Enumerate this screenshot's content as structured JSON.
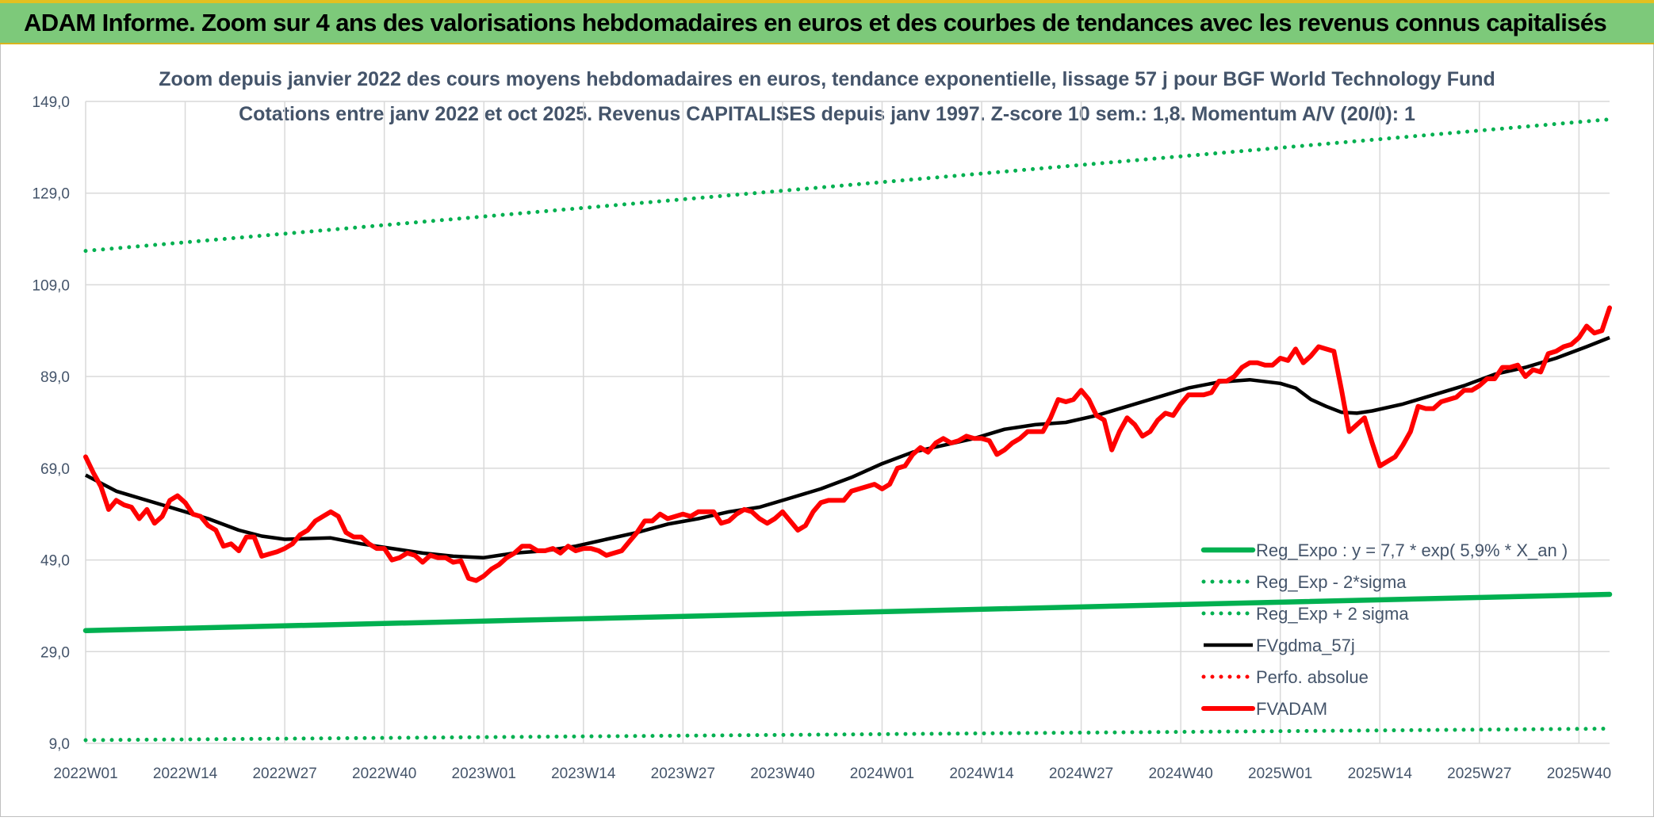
{
  "header": {
    "title": "ADAM Informe. Zoom sur 4 ans des valorisations hebdomadaires en euros et des courbes de tendances avec les revenus connus capitalisés",
    "background_color": "#7dc97a"
  },
  "chart_data": {
    "type": "line",
    "title": "Zoom depuis janvier 2022 des cours moyens hebdomadaires en euros, tendance exponentielle, lissage 57 j pour BGF World Technology Fund",
    "subtitle": "Cotations entre janv 2022 et oct 2025. Revenus CAPITALISES depuis janv 1997. Z-score 10 sem.: 1,8. Momentum A/V (20/0): 1",
    "ylim": [
      9,
      149
    ],
    "y_ticks": [
      "149,0",
      "129,0",
      "109,0",
      "89,0",
      "69,0",
      "49,0",
      "29,0",
      "9,0"
    ],
    "x_ticks": [
      "2022W01",
      "2022W14",
      "2022W27",
      "2022W40",
      "2023W01",
      "2023W14",
      "2023W27",
      "2023W40",
      "2024W01",
      "2024W14",
      "2024W27",
      "2024W40",
      "2025W01",
      "2025W14",
      "2025W27",
      "2025W40"
    ],
    "x_range_weeks": [
      0,
      199
    ],
    "grid": true,
    "legend_position": "bottom-right",
    "legend": [
      {
        "label": "Reg_Expo : y = 7,7 * exp( 5,9% *  X_an )",
        "color": "#00b050",
        "style": "solid"
      },
      {
        "label": "Reg_Exp - 2*sigma",
        "color": "#00b050",
        "style": "dotted"
      },
      {
        "label": "Reg_Exp + 2 sigma",
        "color": "#00b050",
        "style": "dotted"
      },
      {
        "label": "FVgdma_57j",
        "color": "#000000",
        "style": "solid"
      },
      {
        "label": "Perfo. absolue",
        "color": "#ff0000",
        "style": "dotted"
      },
      {
        "label": "FVADAM",
        "color": "#ff0000",
        "style": "solid-thick"
      }
    ],
    "series": [
      {
        "name": "Reg_Expo : y = 7,7 * exp( 5,9% *  X_an )",
        "color": "#00b050",
        "style": "solid",
        "points": [
          [
            0,
            33.6
          ],
          [
            199,
            41.5
          ]
        ]
      },
      {
        "name": "Reg_Exp - 2*sigma",
        "color": "#00b050",
        "style": "dotted",
        "points": [
          [
            0,
            9.7
          ],
          [
            199,
            12.2
          ]
        ]
      },
      {
        "name": "Reg_Exp + 2 sigma",
        "color": "#00b050",
        "style": "dotted",
        "points": [
          [
            0,
            116.4
          ],
          [
            199,
            145.1
          ]
        ]
      },
      {
        "name": "FVgdma_57j",
        "color": "#000000",
        "style": "solid",
        "points": [
          [
            0,
            67.5
          ],
          [
            4,
            64.0
          ],
          [
            10,
            61.0
          ],
          [
            16,
            58.0
          ],
          [
            20,
            55.5
          ],
          [
            23,
            54.2
          ],
          [
            26,
            53.5
          ],
          [
            32,
            53.8
          ],
          [
            36,
            52.5
          ],
          [
            40,
            51.5
          ],
          [
            44,
            50.5
          ],
          [
            48,
            49.8
          ],
          [
            52,
            49.5
          ],
          [
            56,
            50.5
          ],
          [
            60,
            51.0
          ],
          [
            64,
            52.0
          ],
          [
            68,
            53.5
          ],
          [
            72,
            55.0
          ],
          [
            76,
            56.8
          ],
          [
            80,
            58.0
          ],
          [
            84,
            59.5
          ],
          [
            88,
            60.5
          ],
          [
            92,
            62.5
          ],
          [
            96,
            64.5
          ],
          [
            100,
            67.0
          ],
          [
            104,
            70.0
          ],
          [
            108,
            72.5
          ],
          [
            112,
            74.0
          ],
          [
            116,
            75.5
          ],
          [
            120,
            77.5
          ],
          [
            124,
            78.5
          ],
          [
            128,
            79.0
          ],
          [
            132,
            80.5
          ],
          [
            136,
            82.5
          ],
          [
            140,
            84.5
          ],
          [
            144,
            86.5
          ],
          [
            148,
            87.8
          ],
          [
            152,
            88.3
          ],
          [
            156,
            87.5
          ],
          [
            158,
            86.5
          ],
          [
            160,
            84.0
          ],
          [
            162,
            82.5
          ],
          [
            164,
            81.2
          ],
          [
            166,
            81.0
          ],
          [
            168,
            81.5
          ],
          [
            172,
            83.0
          ],
          [
            176,
            85.0
          ],
          [
            180,
            87.0
          ],
          [
            184,
            89.5
          ],
          [
            188,
            91.0
          ],
          [
            192,
            93.0
          ],
          [
            196,
            95.5
          ],
          [
            199,
            97.5
          ]
        ]
      },
      {
        "name": "FVADAM",
        "color": "#ff0000",
        "style": "solid-thick",
        "points": [
          [
            0,
            71.5
          ],
          [
            1,
            68.0
          ],
          [
            2,
            65.0
          ],
          [
            3,
            60.0
          ],
          [
            4,
            62.0
          ],
          [
            5,
            61.0
          ],
          [
            6,
            60.5
          ],
          [
            7,
            58.0
          ],
          [
            8,
            60.0
          ],
          [
            9,
            57.0
          ],
          [
            10,
            58.5
          ],
          [
            11,
            62.0
          ],
          [
            12,
            63.0
          ],
          [
            13,
            61.5
          ],
          [
            14,
            59.0
          ],
          [
            15,
            58.5
          ],
          [
            16,
            56.5
          ],
          [
            17,
            55.5
          ],
          [
            18,
            52.0
          ],
          [
            19,
            52.5
          ],
          [
            20,
            51.0
          ],
          [
            21,
            54.0
          ],
          [
            22,
            54.0
          ],
          [
            23,
            49.8
          ],
          [
            24,
            50.3
          ],
          [
            25,
            50.8
          ],
          [
            26,
            51.5
          ],
          [
            27,
            52.5
          ],
          [
            28,
            54.5
          ],
          [
            29,
            55.5
          ],
          [
            30,
            57.5
          ],
          [
            31,
            58.5
          ],
          [
            32,
            59.5
          ],
          [
            33,
            58.5
          ],
          [
            34,
            55.0
          ],
          [
            35,
            54.0
          ],
          [
            36,
            54.0
          ],
          [
            37,
            52.5
          ],
          [
            38,
            51.5
          ],
          [
            39,
            51.5
          ],
          [
            40,
            49.0
          ],
          [
            41,
            49.5
          ],
          [
            42,
            50.5
          ],
          [
            43,
            50.0
          ],
          [
            44,
            48.5
          ],
          [
            45,
            50.0
          ],
          [
            46,
            49.5
          ],
          [
            47,
            49.5
          ],
          [
            48,
            48.5
          ],
          [
            49,
            48.8
          ],
          [
            50,
            45.0
          ],
          [
            51,
            44.5
          ],
          [
            52,
            45.5
          ],
          [
            53,
            47.0
          ],
          [
            54,
            48.0
          ],
          [
            55,
            49.5
          ],
          [
            56,
            50.5
          ],
          [
            57,
            52.0
          ],
          [
            58,
            52.0
          ],
          [
            59,
            51.0
          ],
          [
            60,
            51.0
          ],
          [
            61,
            51.5
          ],
          [
            62,
            50.5
          ],
          [
            63,
            52.0
          ],
          [
            64,
            51.0
          ],
          [
            65,
            51.5
          ],
          [
            66,
            51.5
          ],
          [
            67,
            51.0
          ],
          [
            68,
            50.0
          ],
          [
            69,
            50.5
          ],
          [
            70,
            51.0
          ],
          [
            71,
            53.0
          ],
          [
            72,
            55.0
          ],
          [
            73,
            57.5
          ],
          [
            74,
            57.5
          ],
          [
            75,
            59.0
          ],
          [
            76,
            58.0
          ],
          [
            77,
            58.5
          ],
          [
            78,
            59.0
          ],
          [
            79,
            58.5
          ],
          [
            80,
            59.5
          ],
          [
            81,
            59.5
          ],
          [
            82,
            59.5
          ],
          [
            83,
            57.0
          ],
          [
            84,
            57.5
          ],
          [
            85,
            59.0
          ],
          [
            86,
            60.0
          ],
          [
            87,
            59.5
          ],
          [
            88,
            58.0
          ],
          [
            89,
            57.0
          ],
          [
            90,
            58.0
          ],
          [
            91,
            59.5
          ],
          [
            92,
            57.5
          ],
          [
            93,
            55.5
          ],
          [
            94,
            56.5
          ],
          [
            95,
            59.5
          ],
          [
            96,
            61.5
          ],
          [
            97,
            62.0
          ],
          [
            98,
            62.0
          ],
          [
            99,
            62.0
          ],
          [
            100,
            64.0
          ],
          [
            101,
            64.5
          ],
          [
            102,
            65.0
          ],
          [
            103,
            65.5
          ],
          [
            104,
            64.5
          ],
          [
            105,
            65.5
          ],
          [
            106,
            69.0
          ],
          [
            107,
            69.5
          ],
          [
            108,
            72.0
          ],
          [
            109,
            73.5
          ],
          [
            110,
            72.5
          ],
          [
            111,
            74.5
          ],
          [
            112,
            75.5
          ],
          [
            113,
            74.5
          ],
          [
            114,
            75.0
          ],
          [
            115,
            76.0
          ],
          [
            116,
            75.5
          ],
          [
            117,
            75.5
          ],
          [
            118,
            75.0
          ],
          [
            119,
            72.0
          ],
          [
            120,
            73.0
          ],
          [
            121,
            74.5
          ],
          [
            122,
            75.5
          ],
          [
            123,
            77.0
          ],
          [
            124,
            77.0
          ],
          [
            125,
            77.0
          ],
          [
            126,
            80.0
          ],
          [
            127,
            84.0
          ],
          [
            128,
            83.5
          ],
          [
            129,
            84.0
          ],
          [
            130,
            86.0
          ],
          [
            131,
            84.0
          ],
          [
            132,
            80.5
          ],
          [
            133,
            79.5
          ],
          [
            134,
            73.0
          ],
          [
            135,
            77.0
          ],
          [
            136,
            80.0
          ],
          [
            137,
            78.5
          ],
          [
            138,
            76.0
          ],
          [
            139,
            77.0
          ],
          [
            140,
            79.5
          ],
          [
            141,
            81.0
          ],
          [
            142,
            80.5
          ],
          [
            143,
            83.0
          ],
          [
            144,
            85.0
          ],
          [
            145,
            85.0
          ],
          [
            146,
            85.0
          ],
          [
            147,
            85.5
          ],
          [
            148,
            88.0
          ],
          [
            149,
            88.0
          ],
          [
            150,
            89.0
          ],
          [
            151,
            91.0
          ],
          [
            152,
            92.0
          ],
          [
            153,
            92.0
          ],
          [
            154,
            91.5
          ],
          [
            155,
            91.5
          ],
          [
            156,
            93.0
          ],
          [
            157,
            92.5
          ],
          [
            158,
            95.0
          ],
          [
            159,
            92.0
          ],
          [
            160,
            93.5
          ],
          [
            161,
            95.5
          ],
          [
            162,
            95.0
          ],
          [
            163,
            94.5
          ],
          [
            164,
            86.0
          ],
          [
            165,
            77.0
          ],
          [
            166,
            78.5
          ],
          [
            167,
            80.0
          ],
          [
            168,
            74.5
          ],
          [
            169,
            69.5
          ],
          [
            170,
            70.5
          ],
          [
            171,
            71.5
          ],
          [
            172,
            74.0
          ],
          [
            173,
            77.0
          ],
          [
            174,
            82.5
          ],
          [
            175,
            82.0
          ],
          [
            176,
            82.0
          ],
          [
            177,
            83.5
          ],
          [
            178,
            84.0
          ],
          [
            179,
            84.5
          ],
          [
            180,
            86.0
          ],
          [
            181,
            86.0
          ],
          [
            182,
            87.0
          ],
          [
            183,
            88.5
          ],
          [
            184,
            88.5
          ],
          [
            185,
            91.0
          ],
          [
            186,
            91.0
          ],
          [
            187,
            91.5
          ],
          [
            188,
            89.0
          ],
          [
            189,
            90.5
          ],
          [
            190,
            90.0
          ],
          [
            191,
            94.0
          ],
          [
            192,
            94.5
          ],
          [
            193,
            95.5
          ],
          [
            194,
            96.0
          ],
          [
            195,
            97.5
          ],
          [
            196,
            100.0
          ],
          [
            197,
            98.5
          ],
          [
            198,
            99.0
          ],
          [
            199,
            104.0
          ]
        ]
      }
    ]
  }
}
